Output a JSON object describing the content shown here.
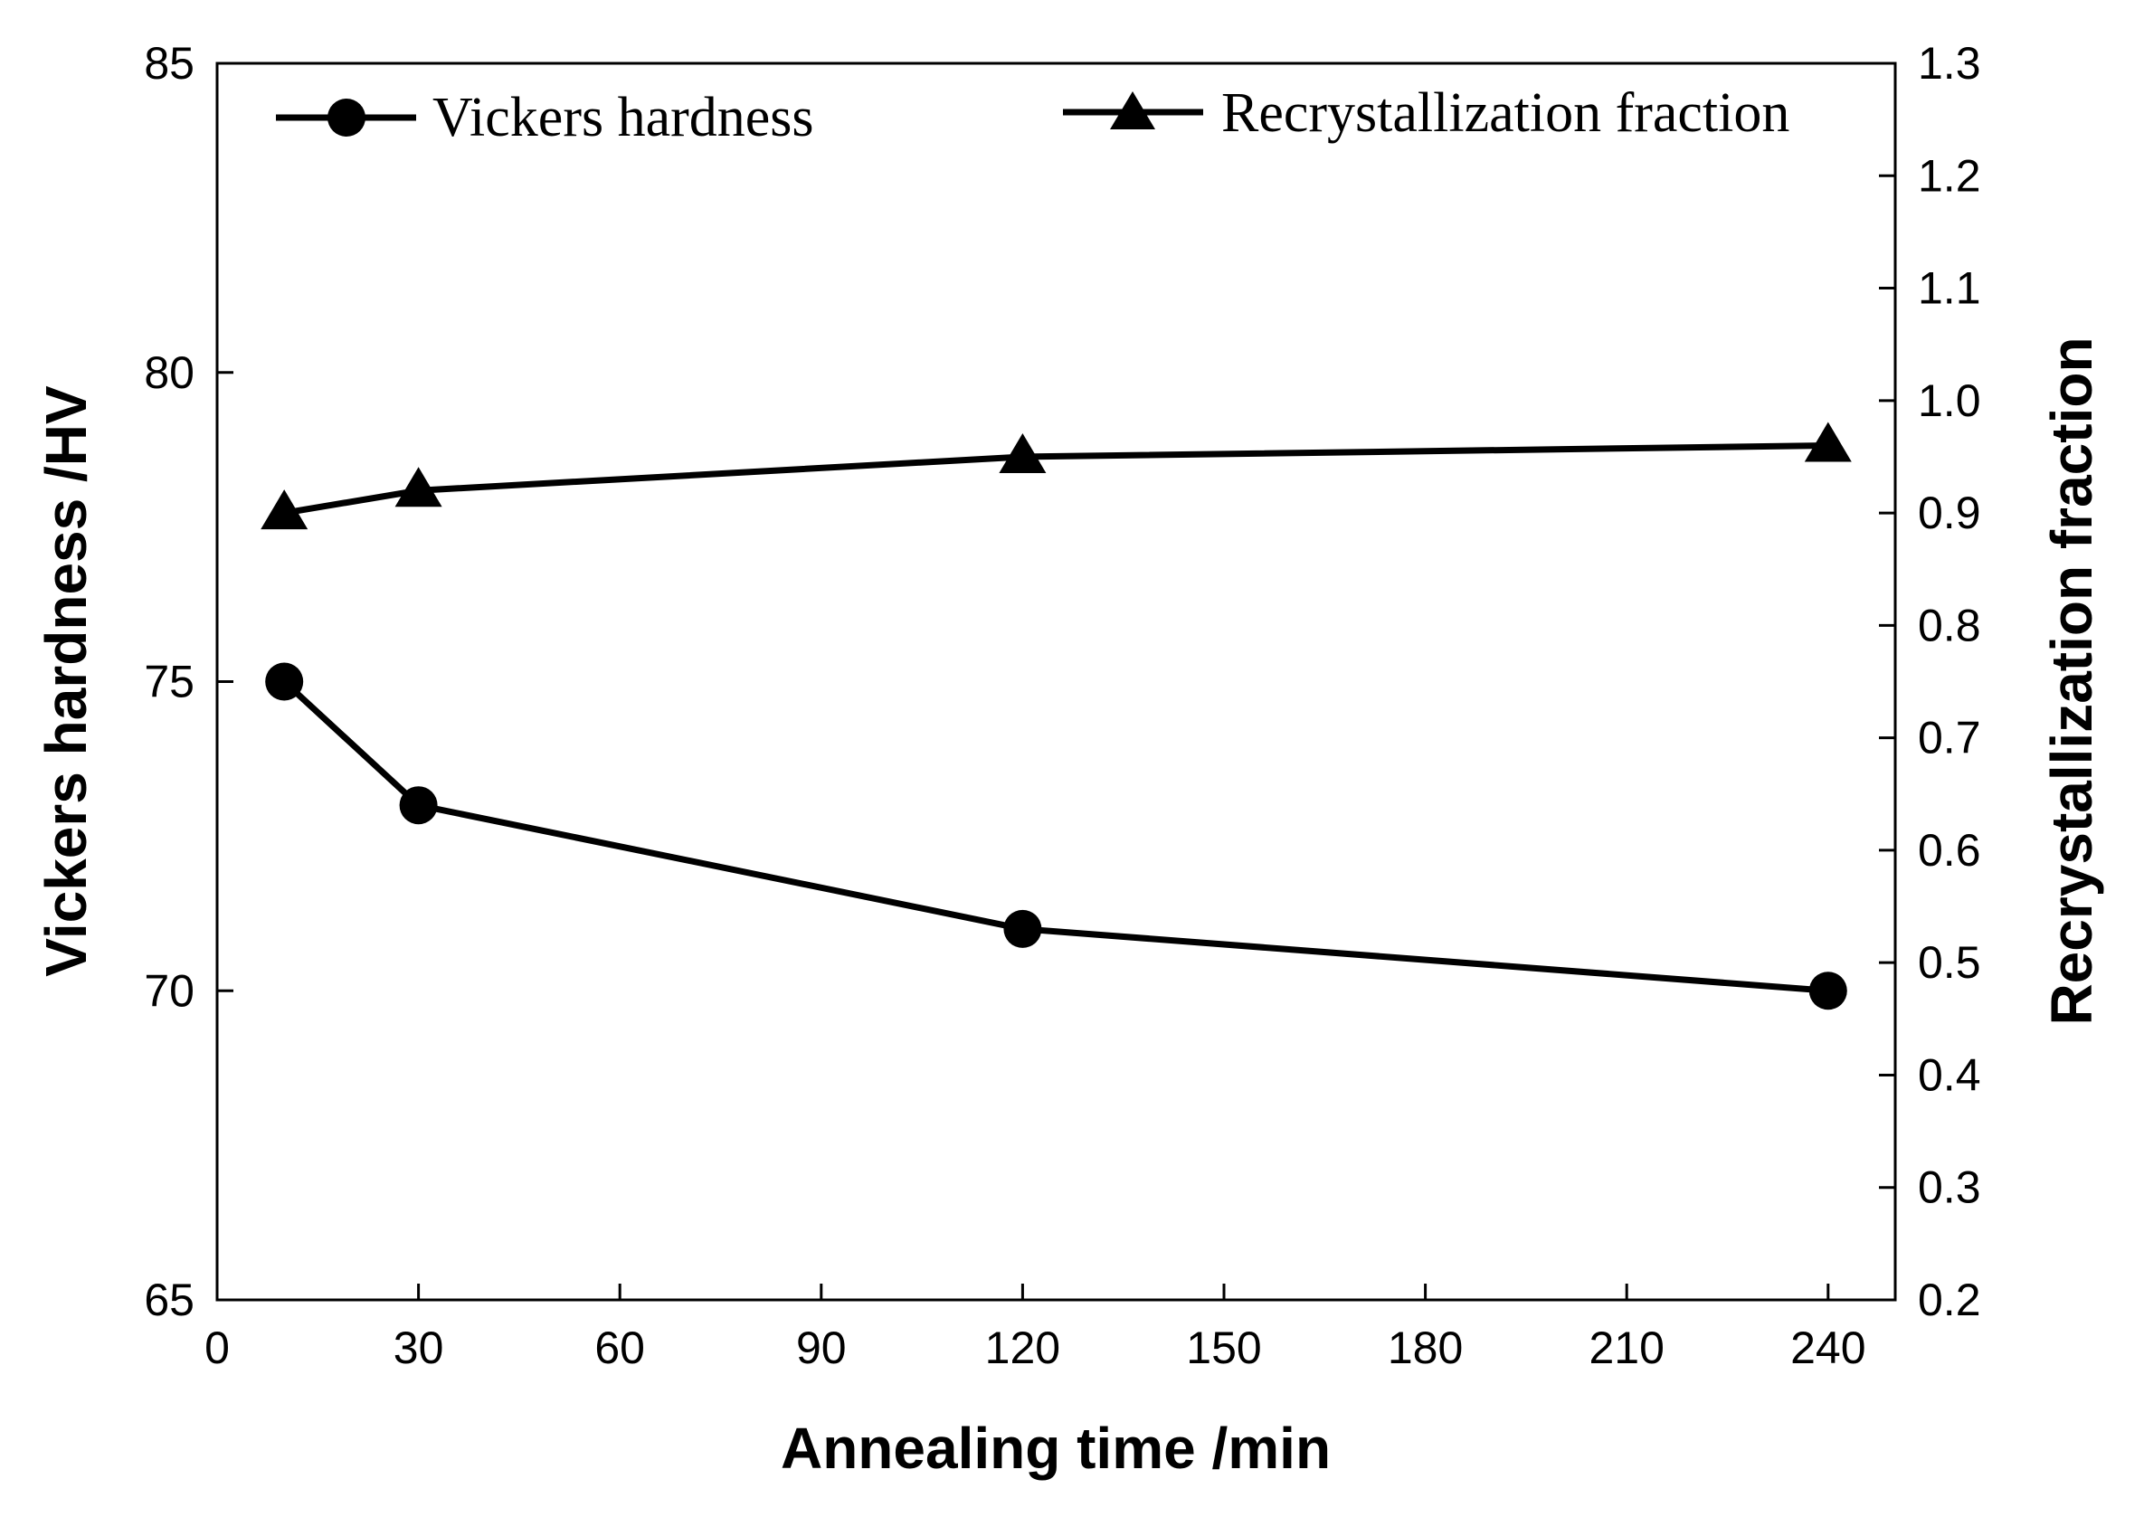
{
  "chart_data": {
    "type": "line",
    "xlabel": "Annealing time /min",
    "ylabel": "Vickers hardness /HV",
    "y2label": "Recrystallization fraction",
    "xlim": [
      0,
      250
    ],
    "ylim": [
      65,
      85
    ],
    "y2lim": [
      0.2,
      1.3
    ],
    "xticks": [
      "0",
      "30",
      "60",
      "90",
      "120",
      "150",
      "180",
      "210",
      "240"
    ],
    "yticks": [
      "65",
      "70",
      "75",
      "80",
      "85"
    ],
    "y2ticks": [
      "0.2",
      "0.3",
      "0.4",
      "0.5",
      "0.6",
      "0.7",
      "0.8",
      "0.9",
      "1.0",
      "1.1",
      "1.2",
      "1.3"
    ],
    "legend_position": "top",
    "series": [
      {
        "name": "Vickers hardness",
        "axis": "left",
        "marker": "circle",
        "x": [
          10,
          30,
          120,
          240
        ],
        "values": [
          75,
          73,
          71,
          70
        ]
      },
      {
        "name": "Recrystallization fraction",
        "axis": "right",
        "marker": "triangle",
        "x": [
          10,
          30,
          120,
          240
        ],
        "values": [
          0.9,
          0.92,
          0.95,
          0.96
        ]
      }
    ],
    "colors": {
      "line": "#000000",
      "background": "#ffffff"
    }
  }
}
